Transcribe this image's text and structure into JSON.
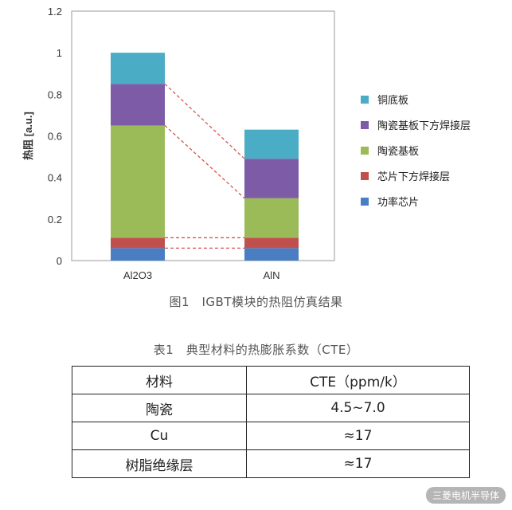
{
  "chart_data": {
    "type": "bar",
    "stacked": true,
    "categories": [
      "Al2O3",
      "AlN"
    ],
    "ylabel": "热阻 [a.u.]",
    "ylim": [
      0,
      1.2
    ],
    "yticks": [
      "0",
      "0.2",
      "0.4",
      "0.6",
      "0.8",
      "1",
      "1.2"
    ],
    "yticks_values": [
      0,
      0.2,
      0.4,
      0.6,
      0.8,
      1.0,
      1.2
    ],
    "grid": false,
    "legend_position": "right",
    "series": [
      {
        "name": "功率芯片",
        "color": "#4a7ec2",
        "values": [
          0.06,
          0.06
        ]
      },
      {
        "name": "芯片下方焊接层",
        "color": "#c0504d",
        "values": [
          0.05,
          0.05
        ]
      },
      {
        "name": "陶瓷基板",
        "color": "#9bbb59",
        "values": [
          0.54,
          0.19
        ]
      },
      {
        "name": "陶瓷基板下方焊接层",
        "color": "#7d5ba6",
        "values": [
          0.2,
          0.19
        ]
      },
      {
        "name": "铜底板",
        "color": "#4bacc6",
        "values": [
          0.15,
          0.14
        ]
      }
    ],
    "connector_color": "#d9534f"
  },
  "figure_caption": "图1　IGBT模块的热阻仿真结果",
  "table": {
    "caption": "表1　典型材料的热膨胀系数（CTE）",
    "header": [
      "材料",
      "CTE（ppm/k）"
    ],
    "rows": [
      [
        "陶瓷",
        "4.5~7.0"
      ],
      [
        "Cu",
        "≈17"
      ],
      [
        "树脂绝缘层",
        "≈17"
      ]
    ]
  },
  "watermark": "三菱电机半导体"
}
